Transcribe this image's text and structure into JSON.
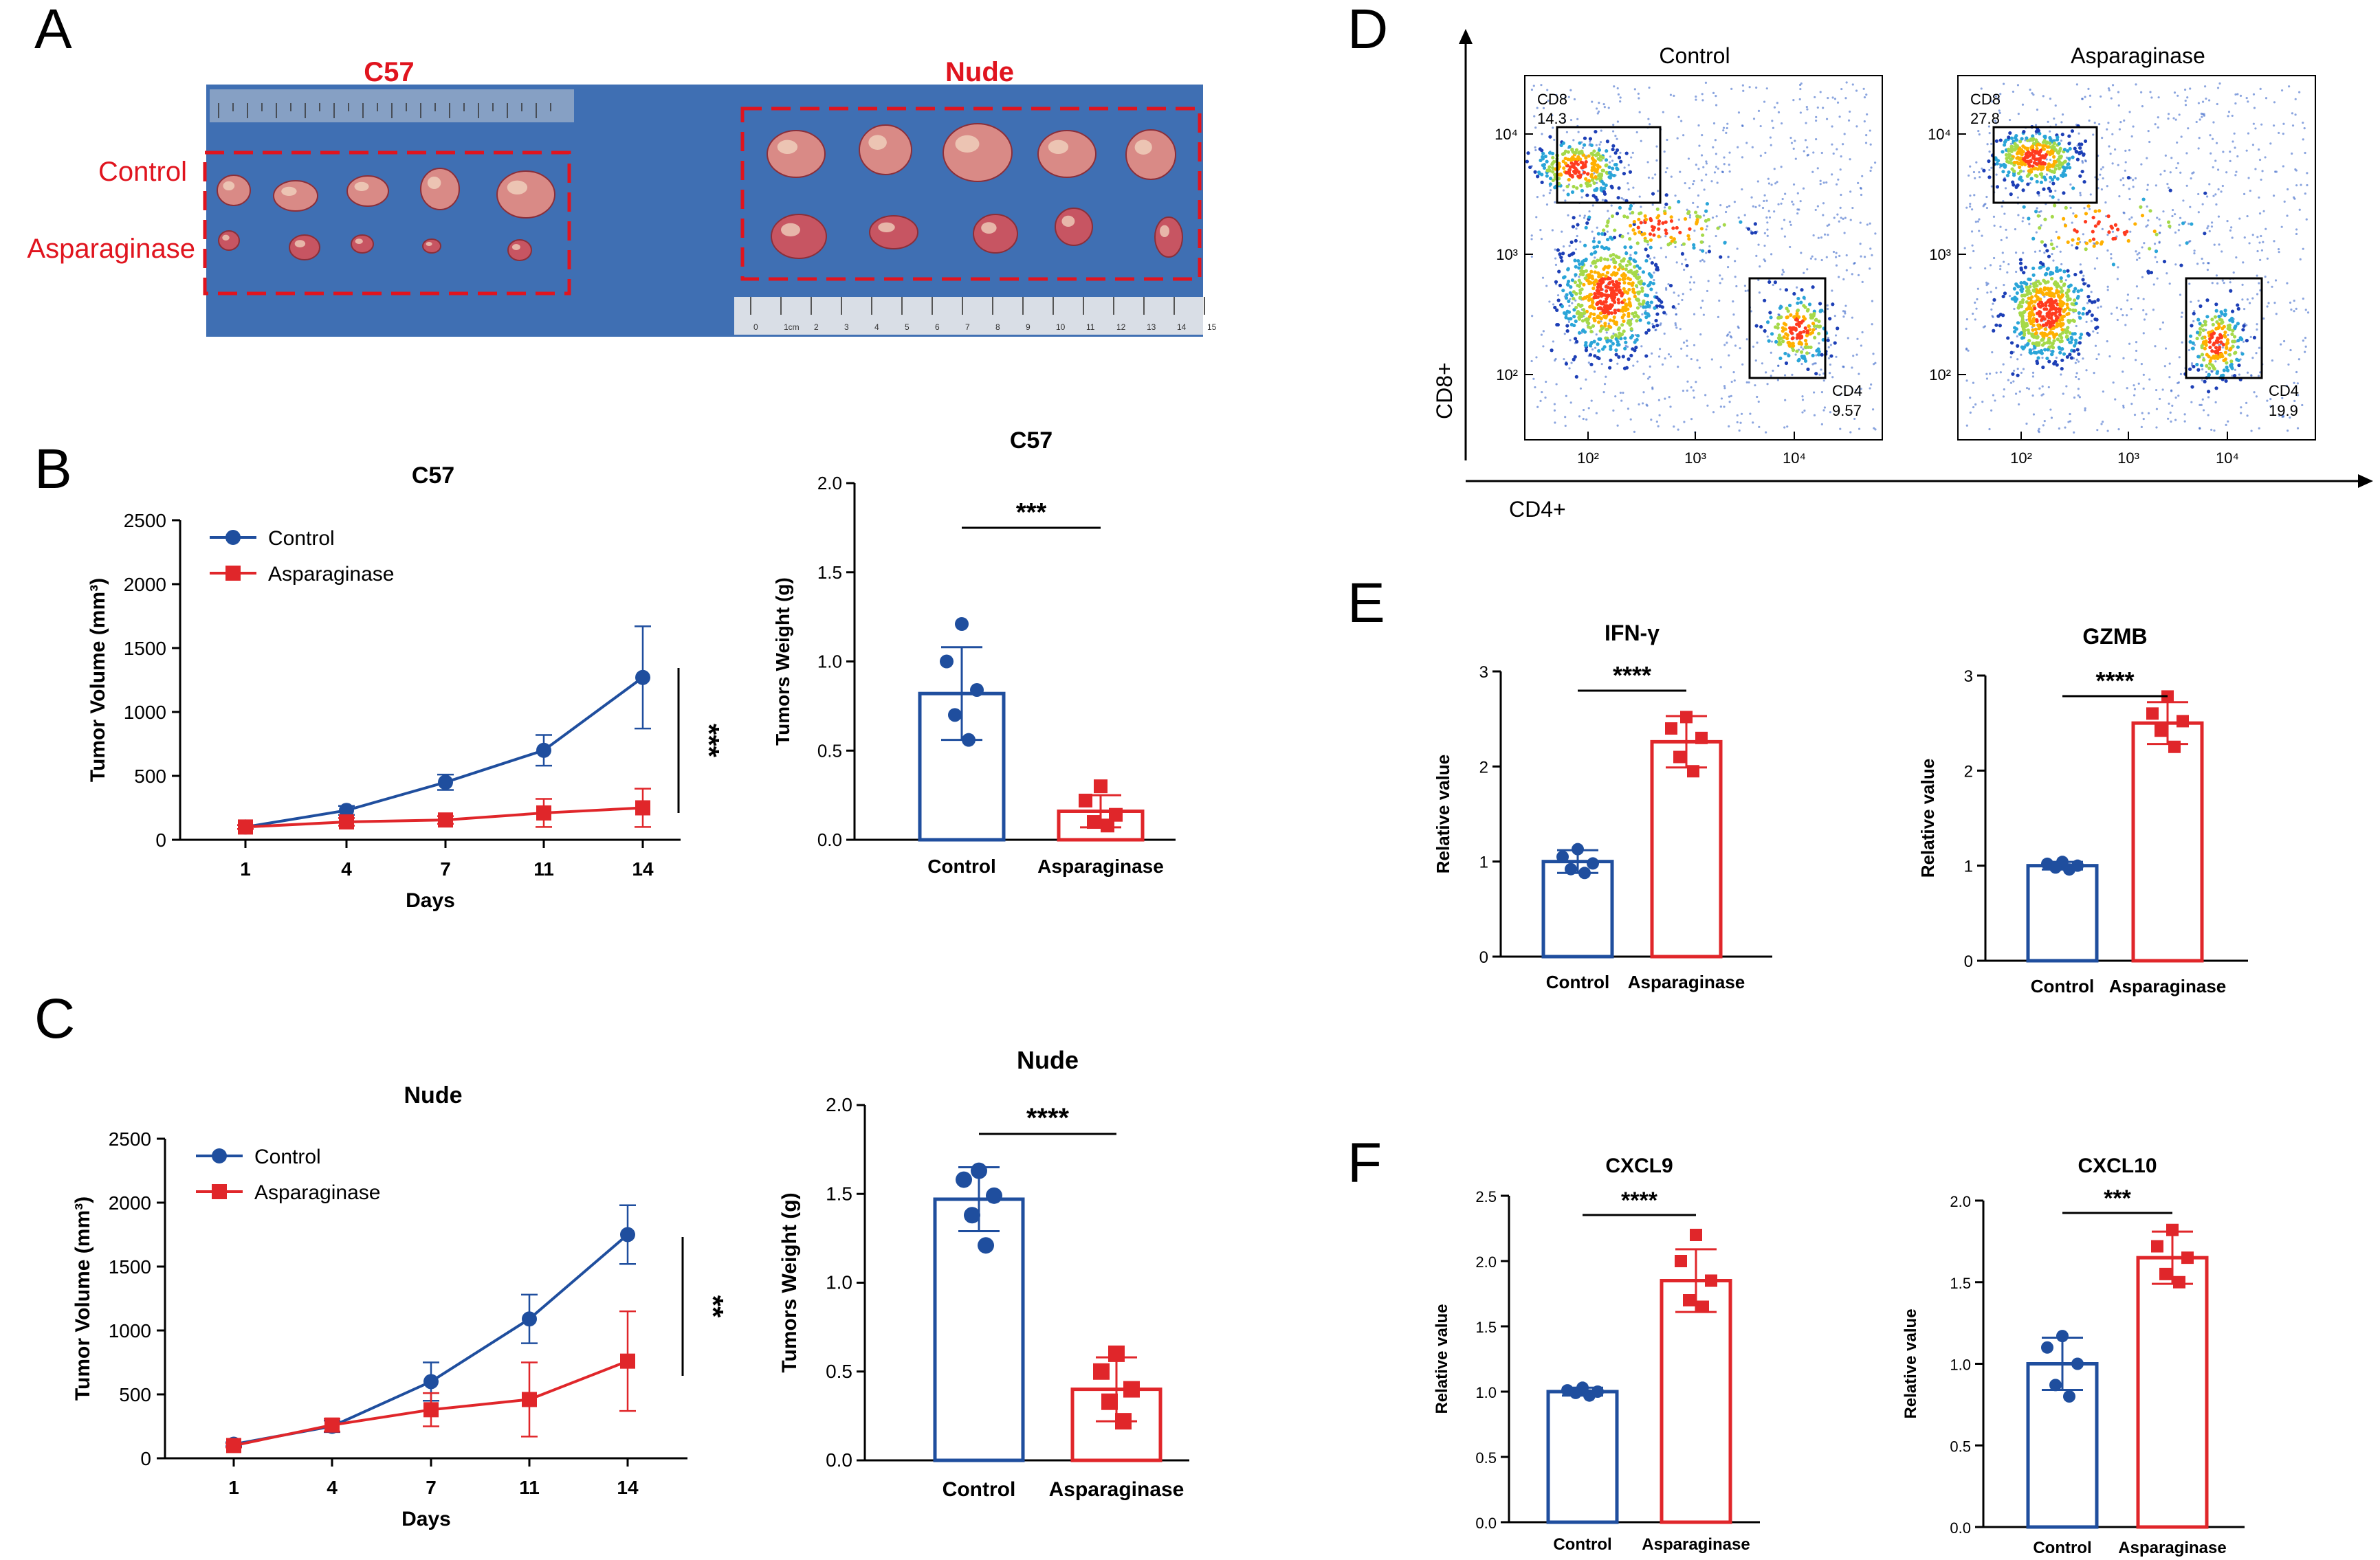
{
  "panels": {
    "A": {
      "letter": "A",
      "title_c57": "C57",
      "title_nude": "Nude",
      "row_control": "Control",
      "row_treat": "Asparaginase",
      "ruler_ticks": [
        "0",
        "1cm",
        "2",
        "3",
        "4",
        "5",
        "6",
        "7",
        "8",
        "9",
        "10",
        "11",
        "12",
        "13",
        "14",
        "15"
      ]
    },
    "B": {
      "letter": "B"
    },
    "C": {
      "letter": "C"
    },
    "D": {
      "letter": "D",
      "titles": [
        "Control",
        "Asparaginase"
      ],
      "x_axis": "CD4+",
      "y_axis": "CD8+",
      "ticks_y": [
        "10²",
        "10³",
        "10⁴"
      ],
      "ticks_x": [
        "10²",
        "10³",
        "10⁴"
      ],
      "gates": [
        {
          "cd8_label": "CD8",
          "cd8": "14.3",
          "cd4_label": "CD4",
          "cd4": "9.57"
        },
        {
          "cd8_label": "CD8",
          "cd8": "27.8",
          "cd4_label": "CD4",
          "cd4": "19.9"
        }
      ]
    },
    "E": {
      "letter": "E"
    },
    "F": {
      "letter": "F"
    }
  },
  "colors": {
    "control": "#1f4e9e",
    "treatment": "#e0262a",
    "panel_red": "#e0141e"
  },
  "chart_data": [
    {
      "id": "B-line",
      "type": "line",
      "title": "C57",
      "xlabel": "Days",
      "ylabel": "Tumor Volume (mm³)",
      "categories": [
        "1",
        "4",
        "7",
        "11",
        "14"
      ],
      "ylim": [
        0,
        2500
      ],
      "yticks": [
        0,
        500,
        1000,
        1500,
        2000,
        2500
      ],
      "series": [
        {
          "name": "Control",
          "values": [
            100,
            230,
            450,
            700,
            1270
          ],
          "err": [
            15,
            35,
            60,
            120,
            400
          ]
        },
        {
          "name": "Asparaginase",
          "values": [
            100,
            140,
            155,
            210,
            250
          ],
          "err": [
            15,
            30,
            30,
            110,
            150
          ]
        }
      ],
      "significance": "***",
      "legend": "top-left"
    },
    {
      "id": "B-bar",
      "type": "bar",
      "title": "C57",
      "xlabel": "",
      "ylabel": "Tumors Weight (g)",
      "categories": [
        "Control",
        "Asparaginase"
      ],
      "ylim": [
        0,
        2.0
      ],
      "yticks": [
        "0.0",
        "0.5",
        "1.0",
        "1.5",
        "2.0"
      ],
      "values": [
        0.82,
        0.16
      ],
      "err": [
        0.26,
        0.09
      ],
      "points": [
        [
          1.21,
          1.0,
          0.84,
          0.7,
          0.56
        ],
        [
          0.3,
          0.22,
          0.14,
          0.1,
          0.08
        ]
      ],
      "significance": "***"
    },
    {
      "id": "C-line",
      "type": "line",
      "title": "Nude",
      "xlabel": "Days",
      "ylabel": "Tumor Volume (mm³)",
      "categories": [
        "1",
        "4",
        "7",
        "11",
        "14"
      ],
      "ylim": [
        0,
        2500
      ],
      "yticks": [
        0,
        500,
        1000,
        1500,
        2000,
        2500
      ],
      "series": [
        {
          "name": "Control",
          "values": [
            110,
            250,
            600,
            1090,
            1750
          ],
          "err": [
            15,
            45,
            150,
            190,
            230
          ]
        },
        {
          "name": "Asparaginase",
          "values": [
            100,
            260,
            380,
            460,
            760
          ],
          "err": [
            15,
            50,
            130,
            290,
            390
          ]
        }
      ],
      "significance": "**",
      "legend": "top-left"
    },
    {
      "id": "C-bar",
      "type": "bar",
      "title": "Nude",
      "xlabel": "",
      "ylabel": "Tumors Weight (g)",
      "categories": [
        "Control",
        "Asparaginase"
      ],
      "ylim": [
        0,
        2.0
      ],
      "yticks": [
        "0.0",
        "0.5",
        "1.0",
        "1.5",
        "2.0"
      ],
      "values": [
        1.47,
        0.4
      ],
      "err": [
        0.18,
        0.18
      ],
      "points": [
        [
          1.63,
          1.58,
          1.49,
          1.38,
          1.21
        ],
        [
          0.6,
          0.5,
          0.4,
          0.33,
          0.22
        ]
      ],
      "significance": "****"
    },
    {
      "id": "E-IFNg",
      "type": "bar",
      "title": "IFN-γ",
      "xlabel": "",
      "ylabel": "Relative value",
      "categories": [
        "Control",
        "Asparaginase"
      ],
      "ylim": [
        0,
        3
      ],
      "yticks": [
        "0",
        "1",
        "2",
        "3"
      ],
      "values": [
        1.0,
        2.26
      ],
      "err": [
        0.12,
        0.27
      ],
      "points": [
        [
          1.13,
          1.05,
          0.98,
          0.92,
          0.88
        ],
        [
          2.52,
          2.4,
          2.3,
          2.1,
          1.95
        ]
      ],
      "significance": "****"
    },
    {
      "id": "E-GZMB",
      "type": "bar",
      "title": "GZMB",
      "xlabel": "",
      "ylabel": "Relative value",
      "categories": [
        "Control",
        "Asparaginase"
      ],
      "ylim": [
        0,
        3
      ],
      "yticks": [
        "0",
        "1",
        "2",
        "3"
      ],
      "values": [
        1.0,
        2.5
      ],
      "err": [
        0.04,
        0.22
      ],
      "points": [
        [
          1.04,
          1.02,
          1.0,
          0.98,
          0.96
        ],
        [
          2.78,
          2.6,
          2.52,
          2.42,
          2.25
        ]
      ],
      "significance": "****"
    },
    {
      "id": "F-CXCL9",
      "type": "bar",
      "title": "CXCL9",
      "xlabel": "",
      "ylabel": "Relative value",
      "categories": [
        "Control",
        "Asparaginase"
      ],
      "ylim": [
        0,
        2.5
      ],
      "yticks": [
        "0.0",
        "0.5",
        "1.0",
        "1.5",
        "2.0",
        "2.5"
      ],
      "values": [
        1.0,
        1.85
      ],
      "err": [
        0.03,
        0.24
      ],
      "points": [
        [
          1.03,
          1.01,
          1.0,
          0.99,
          0.97
        ],
        [
          2.2,
          2.0,
          1.85,
          1.7,
          1.65
        ]
      ],
      "significance": "****"
    },
    {
      "id": "F-CXCL10",
      "type": "bar",
      "title": "CXCL10",
      "xlabel": "",
      "ylabel": "Relative value",
      "categories": [
        "Control",
        "Asparaginase"
      ],
      "ylim": [
        0,
        2.0
      ],
      "yticks": [
        "0.0",
        "0.5",
        "1.0",
        "1.5",
        "2.0"
      ],
      "values": [
        1.0,
        1.65
      ],
      "err": [
        0.16,
        0.16
      ],
      "points": [
        [
          1.17,
          1.1,
          1.0,
          0.87,
          0.8
        ],
        [
          1.82,
          1.72,
          1.65,
          1.55,
          1.5
        ]
      ],
      "significance": "***"
    }
  ]
}
